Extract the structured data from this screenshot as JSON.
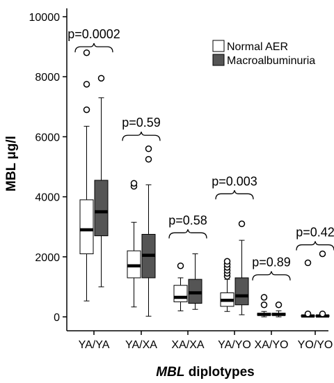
{
  "chart_data": {
    "type": "boxplot",
    "ylabel": "MBL μg/l",
    "xlabel_italic": "MBL",
    "xlabel_rest": " diplotypes",
    "ylim": [
      0,
      10000
    ],
    "yticks": [
      0,
      2000,
      4000,
      6000,
      8000,
      10000
    ],
    "categories": [
      "YA/YA",
      "YA/XA",
      "XA/XA",
      "YA/YO",
      "XA/YO",
      "YO/YO"
    ],
    "legend_position": "top-right",
    "series": [
      {
        "name": "Normal AER",
        "color": "#ffffff",
        "median_color": "#000000",
        "boxes": [
          {
            "q1": 2100,
            "median": 2900,
            "q3": 3900,
            "whisker_low": 530,
            "whisker_high": 6350,
            "outliers": [
              6900,
              7750,
              8800
            ]
          },
          {
            "q1": 1300,
            "median": 1700,
            "q3": 2200,
            "whisker_low": 330,
            "whisker_high": 3150,
            "outliers": [
              4350,
              4450
            ]
          },
          {
            "q1": 500,
            "median": 650,
            "q3": 1050,
            "whisker_low": 200,
            "whisker_high": 1300,
            "outliers": [
              1700
            ]
          },
          {
            "q1": 350,
            "median": 550,
            "q3": 800,
            "whisker_low": 180,
            "whisker_high": 1250,
            "outliers": [
              1350,
              1450,
              1550,
              1650,
              1750,
              1850
            ]
          },
          {
            "q1": 50,
            "median": 80,
            "q3": 120,
            "whisker_low": 0,
            "whisker_high": 180,
            "outliers": [
              400,
              650
            ]
          },
          {
            "q1": 20,
            "median": 30,
            "q3": 50,
            "whisker_low": 0,
            "whisker_high": 60,
            "outliers": [
              100,
              1800
            ]
          }
        ]
      },
      {
        "name": "Macroalbuminuria",
        "color": "#555555",
        "median_color": "#000000",
        "boxes": [
          {
            "q1": 2700,
            "median": 3500,
            "q3": 4550,
            "whisker_low": 1000,
            "whisker_high": 7300,
            "outliers": [
              7950
            ]
          },
          {
            "q1": 1300,
            "median": 2050,
            "q3": 2750,
            "whisker_low": 20,
            "whisker_high": 4400,
            "outliers": [
              5250,
              5600
            ]
          },
          {
            "q1": 450,
            "median": 800,
            "q3": 1250,
            "whisker_low": 250,
            "whisker_high": 2100,
            "outliers": []
          },
          {
            "q1": 400,
            "median": 700,
            "q3": 1300,
            "whisker_low": 70,
            "whisker_high": 2550,
            "outliers": [
              3100
            ]
          },
          {
            "q1": 50,
            "median": 80,
            "q3": 120,
            "whisker_low": 0,
            "whisker_high": 200,
            "outliers": [
              400
            ]
          },
          {
            "q1": 20,
            "median": 30,
            "q3": 50,
            "whisker_low": 0,
            "whisker_high": 60,
            "outliers": [
              100,
              2100
            ]
          }
        ]
      }
    ],
    "annotations": [
      {
        "text": "p=0.0002",
        "bracket_y": 9000
      },
      {
        "text": "p=0.59",
        "bracket_y": 6050
      },
      {
        "text": "p=0.58",
        "bracket_y": 2800
      },
      {
        "text": "p=0.003",
        "bracket_y": 4100
      },
      {
        "text": "p=0.89",
        "bracket_y": 1400
      },
      {
        "text": "p=0.42",
        "bracket_y": 2400
      }
    ]
  }
}
